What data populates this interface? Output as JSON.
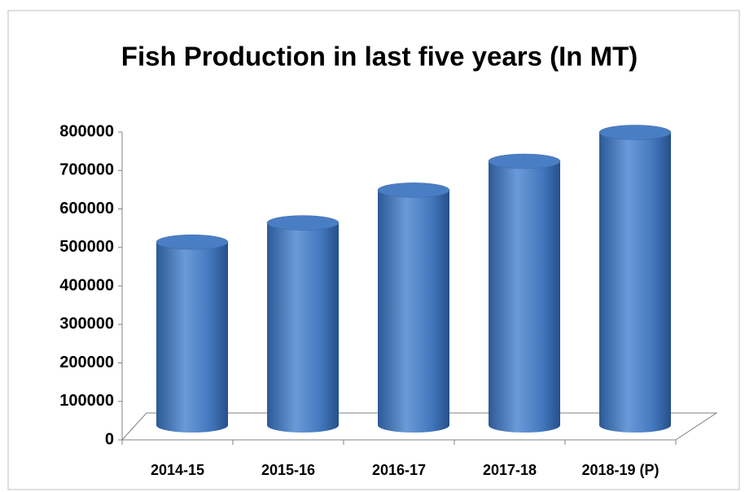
{
  "chart_data": {
    "type": "bar",
    "title": "Fish Production in last five years (In MT)",
    "categories": [
      "2014-15",
      "2015-16",
      "2016-17",
      "2017-18",
      "2018-19 (P)"
    ],
    "values": [
      480000,
      530000,
      615000,
      690000,
      765000
    ],
    "color": "#4a7ec4",
    "ylim": [
      0,
      800000
    ],
    "yticks": [
      0,
      100000,
      200000,
      300000,
      400000,
      500000,
      600000,
      700000,
      800000
    ],
    "grid": false
  }
}
